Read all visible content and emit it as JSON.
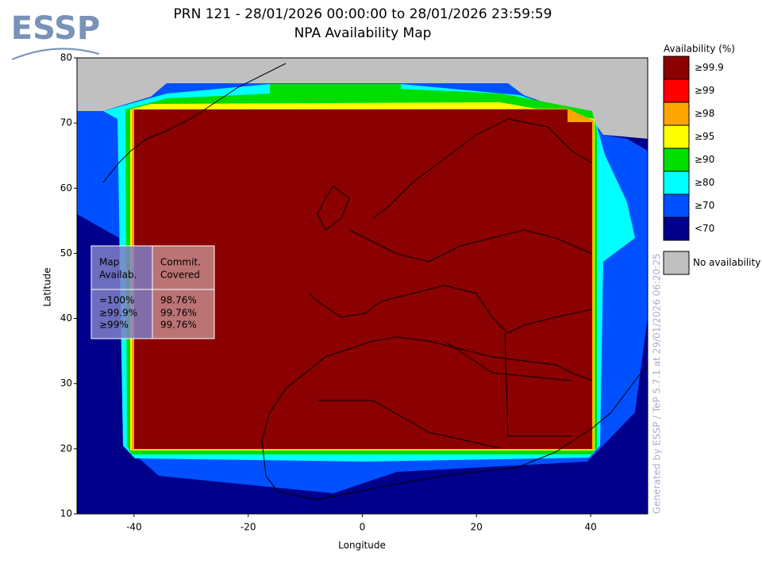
{
  "logo": "ESSP",
  "chart_data": {
    "type": "map",
    "title": "PRN 121 - 28/01/2026 00:00:00 to 28/01/2026 23:59:59",
    "subtitle": "NPA Availability Map",
    "x_label": "Longitude",
    "y_label": "Latitude",
    "xlim": [
      -50,
      50
    ],
    "xticks": [
      -40,
      -20,
      0,
      20,
      40
    ],
    "ylim": [
      10,
      80
    ],
    "yticks": [
      10,
      20,
      30,
      40,
      50,
      60,
      70,
      80
    ],
    "legend": {
      "title": "Availability (%)",
      "items": [
        {
          "label": "≥99.9",
          "color": "#8b0000"
        },
        {
          "label": "≥99",
          "color": "#ff0000"
        },
        {
          "label": "≥98",
          "color": "#ffa500"
        },
        {
          "label": "≥95",
          "color": "#ffff00"
        },
        {
          "label": "≥90",
          "color": "#00dd00"
        },
        {
          "label": "≥80",
          "color": "#00ffff"
        },
        {
          "label": "≥70",
          "color": "#0050ff"
        },
        {
          "label": "<70",
          "color": "#00008b"
        }
      ],
      "no_availability": {
        "label": "No availability",
        "color": "#c0c0c0"
      }
    },
    "credit": "Generated by ESSP / TeP 5.7.1 at 29/01/2026 06:20:25"
  },
  "table": {
    "header": [
      [
        "Map",
        "Availab."
      ],
      [
        "Commit.",
        "Covered"
      ]
    ],
    "columns": [
      [
        "=100%",
        "≥99.9%",
        "≥99%"
      ],
      [
        "98.76%",
        "99.76%",
        "99.76%"
      ]
    ]
  }
}
